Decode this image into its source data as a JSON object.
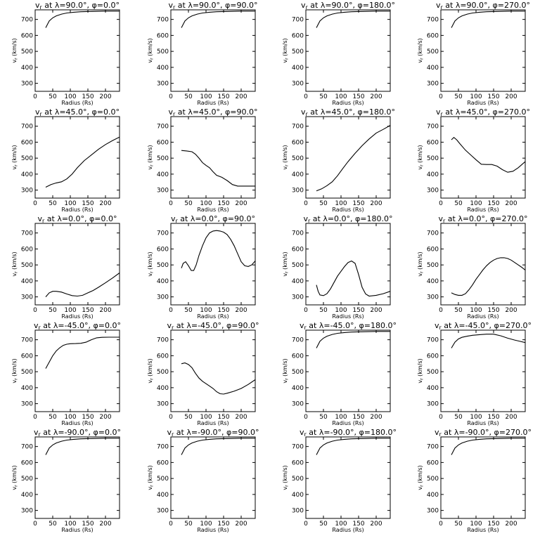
{
  "figure": {
    "xlabel": "Radius (Rs)",
    "ylabel": "vr (km/s)"
  },
  "chart_data": [
    {
      "type": "line",
      "title": "vr at λ=90.0°, φ=0.0°",
      "xlabel": "Radius (Rs)",
      "ylabel": "vr (km/s)",
      "xlim": [
        0,
        240
      ],
      "ylim": [
        250,
        760
      ],
      "xticks": [
        0,
        50,
        100,
        150,
        200
      ],
      "yticks": [
        300,
        400,
        500,
        600,
        700
      ],
      "x": [
        30,
        40,
        50,
        60,
        75,
        90,
        110,
        130,
        160,
        200,
        240
      ],
      "y": [
        648,
        690,
        710,
        722,
        733,
        740,
        745,
        748,
        750,
        752,
        752
      ]
    },
    {
      "type": "line",
      "title": "vr at λ=90.0°, φ=90.0°",
      "xlabel": "Radius (Rs)",
      "ylabel": "vr (km/s)",
      "xlim": [
        0,
        240
      ],
      "ylim": [
        250,
        760
      ],
      "xticks": [
        0,
        50,
        100,
        150,
        200
      ],
      "yticks": [
        300,
        400,
        500,
        600,
        700
      ],
      "x": [
        30,
        40,
        50,
        60,
        75,
        90,
        110,
        130,
        160,
        200,
        240
      ],
      "y": [
        648,
        690,
        710,
        722,
        733,
        740,
        745,
        748,
        750,
        752,
        752
      ]
    },
    {
      "type": "line",
      "title": "vr at λ=90.0°, φ=180.0°",
      "xlabel": "Radius (Rs)",
      "ylabel": "vr (km/s)",
      "xlim": [
        0,
        240
      ],
      "ylim": [
        250,
        760
      ],
      "xticks": [
        0,
        50,
        100,
        150,
        200
      ],
      "yticks": [
        300,
        400,
        500,
        600,
        700
      ],
      "x": [
        30,
        40,
        50,
        60,
        75,
        90,
        110,
        130,
        160,
        200,
        240
      ],
      "y": [
        648,
        690,
        710,
        722,
        733,
        740,
        745,
        748,
        750,
        752,
        752
      ]
    },
    {
      "type": "line",
      "title": "vr at λ=90.0°, φ=270.0°",
      "xlabel": "Radius (Rs)",
      "ylabel": "vr (km/s)",
      "xlim": [
        0,
        240
      ],
      "ylim": [
        250,
        760
      ],
      "xticks": [
        0,
        50,
        100,
        150,
        200
      ],
      "yticks": [
        300,
        400,
        500,
        600,
        700
      ],
      "x": [
        30,
        40,
        50,
        60,
        75,
        90,
        110,
        130,
        160,
        200,
        240
      ],
      "y": [
        648,
        690,
        710,
        722,
        733,
        740,
        745,
        748,
        750,
        752,
        752
      ]
    },
    {
      "type": "line",
      "title": "vr at λ=45.0°, φ=0.0°",
      "xlabel": "Radius (Rs)",
      "ylabel": "vr (km/s)",
      "xlim": [
        0,
        240
      ],
      "ylim": [
        250,
        760
      ],
      "xticks": [
        0,
        50,
        100,
        150,
        200
      ],
      "yticks": [
        300,
        400,
        500,
        600,
        700
      ],
      "x": [
        30,
        45,
        60,
        75,
        90,
        105,
        120,
        140,
        160,
        180,
        200,
        220,
        240
      ],
      "y": [
        318,
        335,
        345,
        352,
        370,
        400,
        440,
        485,
        520,
        555,
        585,
        610,
        632
      ]
    },
    {
      "type": "line",
      "title": "vr at λ=45.0°, φ=90.0°",
      "xlabel": "Radius (Rs)",
      "ylabel": "vr (km/s)",
      "xlim": [
        0,
        240
      ],
      "ylim": [
        250,
        760
      ],
      "xticks": [
        0,
        50,
        100,
        150,
        200
      ],
      "yticks": [
        300,
        400,
        500,
        600,
        700
      ],
      "x": [
        30,
        45,
        60,
        70,
        80,
        90,
        100,
        110,
        120,
        130,
        145,
        160,
        175,
        190,
        210,
        240
      ],
      "y": [
        548,
        545,
        540,
        525,
        500,
        472,
        455,
        440,
        415,
        393,
        380,
        360,
        335,
        325,
        325,
        325
      ]
    },
    {
      "type": "line",
      "title": "vr at λ=45.0°, φ=180.0°",
      "xlabel": "Radius (Rs)",
      "ylabel": "vr (km/s)",
      "xlim": [
        0,
        240
      ],
      "ylim": [
        250,
        760
      ],
      "xticks": [
        0,
        50,
        100,
        150,
        200
      ],
      "yticks": [
        300,
        400,
        500,
        600,
        700
      ],
      "x": [
        30,
        45,
        60,
        75,
        90,
        105,
        120,
        140,
        160,
        180,
        200,
        220,
        240
      ],
      "y": [
        295,
        308,
        328,
        352,
        390,
        435,
        478,
        530,
        578,
        620,
        657,
        680,
        705
      ]
    },
    {
      "type": "line",
      "title": "vr at λ=45.0°, φ=270.0°",
      "xlabel": "Radius (Rs)",
      "ylabel": "vr (km/s)",
      "xlim": [
        0,
        240
      ],
      "ylim": [
        250,
        760
      ],
      "xticks": [
        0,
        50,
        100,
        150,
        200
      ],
      "yticks": [
        300,
        400,
        500,
        600,
        700
      ],
      "x": [
        30,
        37,
        45,
        55,
        70,
        85,
        100,
        115,
        130,
        145,
        160,
        175,
        190,
        205,
        220,
        240
      ],
      "y": [
        615,
        630,
        615,
        588,
        550,
        520,
        490,
        462,
        460,
        460,
        450,
        428,
        412,
        418,
        440,
        478
      ]
    },
    {
      "type": "line",
      "title": "vr at λ=0.0°, φ=0.0°",
      "xlabel": "Radius (Rs)",
      "ylabel": "vr (km/s)",
      "xlim": [
        0,
        240
      ],
      "ylim": [
        250,
        760
      ],
      "xticks": [
        0,
        50,
        100,
        150,
        200
      ],
      "yticks": [
        300,
        400,
        500,
        600,
        700
      ],
      "x": [
        30,
        40,
        50,
        60,
        75,
        90,
        105,
        120,
        135,
        150,
        165,
        180,
        200,
        220,
        240
      ],
      "y": [
        300,
        325,
        335,
        335,
        330,
        318,
        308,
        305,
        310,
        325,
        340,
        360,
        388,
        418,
        450
      ]
    },
    {
      "type": "line",
      "title": "vr at λ=0.0°, φ=90.0°",
      "xlabel": "Radius (Rs)",
      "ylabel": "vr (km/s)",
      "xlim": [
        0,
        240
      ],
      "ylim": [
        250,
        760
      ],
      "xticks": [
        0,
        50,
        100,
        150,
        200
      ],
      "yticks": [
        300,
        400,
        500,
        600,
        700
      ],
      "x": [
        30,
        35,
        42,
        50,
        58,
        65,
        72,
        80,
        90,
        100,
        110,
        120,
        130,
        140,
        150,
        160,
        170,
        180,
        190,
        200,
        210,
        220,
        230,
        240
      ],
      "y": [
        480,
        510,
        520,
        495,
        465,
        465,
        500,
        560,
        620,
        670,
        700,
        712,
        715,
        712,
        705,
        690,
        660,
        620,
        570,
        520,
        495,
        490,
        500,
        525
      ]
    },
    {
      "type": "line",
      "title": "vr at λ=0.0°, φ=180.0°",
      "xlabel": "Radius (Rs)",
      "ylabel": "vr (km/s)",
      "xlim": [
        0,
        240
      ],
      "ylim": [
        250,
        760
      ],
      "xticks": [
        0,
        50,
        100,
        150,
        200
      ],
      "yticks": [
        300,
        400,
        500,
        600,
        700
      ],
      "x": [
        30,
        35,
        40,
        50,
        60,
        70,
        80,
        90,
        100,
        110,
        120,
        130,
        140,
        150,
        160,
        170,
        180,
        200,
        220,
        240
      ],
      "y": [
        375,
        335,
        312,
        308,
        320,
        350,
        390,
        430,
        460,
        490,
        515,
        525,
        510,
        440,
        360,
        318,
        305,
        310,
        320,
        335
      ]
    },
    {
      "type": "line",
      "title": "vr at λ=0.0°, φ=270.0°",
      "xlabel": "Radius (Rs)",
      "ylabel": "vr (km/s)",
      "xlim": [
        0,
        240
      ],
      "ylim": [
        250,
        760
      ],
      "xticks": [
        0,
        50,
        100,
        150,
        200
      ],
      "yticks": [
        300,
        400,
        500,
        600,
        700
      ],
      "x": [
        30,
        40,
        50,
        60,
        70,
        80,
        90,
        100,
        110,
        120,
        130,
        140,
        150,
        160,
        170,
        180,
        190,
        200,
        210,
        220,
        230,
        240
      ],
      "y": [
        325,
        315,
        310,
        310,
        320,
        345,
        375,
        410,
        440,
        470,
        495,
        515,
        530,
        540,
        545,
        545,
        540,
        530,
        515,
        500,
        485,
        468
      ]
    },
    {
      "type": "line",
      "title": "vr at λ=-45.0°, φ=0.0°",
      "xlabel": "Radius (Rs)",
      "ylabel": "vr (km/s)",
      "xlim": [
        0,
        240
      ],
      "ylim": [
        250,
        760
      ],
      "xticks": [
        0,
        50,
        100,
        150,
        200
      ],
      "yticks": [
        300,
        400,
        500,
        600,
        700
      ],
      "x": [
        30,
        40,
        50,
        60,
        70,
        80,
        90,
        100,
        115,
        130,
        145,
        160,
        175,
        190,
        210,
        240
      ],
      "y": [
        520,
        560,
        600,
        630,
        650,
        665,
        672,
        675,
        676,
        678,
        685,
        700,
        712,
        715,
        716,
        716
      ]
    },
    {
      "type": "line",
      "title": "vr at λ=-45.0°, φ=90.0°",
      "xlabel": "Radius (Rs)",
      "ylabel": "vr (km/s)",
      "xlim": [
        0,
        240
      ],
      "ylim": [
        250,
        760
      ],
      "xticks": [
        0,
        50,
        100,
        150,
        200
      ],
      "yticks": [
        300,
        400,
        500,
        600,
        700
      ],
      "x": [
        30,
        40,
        50,
        60,
        70,
        80,
        90,
        100,
        110,
        120,
        130,
        140,
        150,
        160,
        180,
        200,
        220,
        240
      ],
      "y": [
        550,
        555,
        545,
        525,
        490,
        460,
        440,
        425,
        410,
        395,
        375,
        362,
        360,
        365,
        378,
        395,
        420,
        450
      ]
    },
    {
      "type": "line",
      "title": "vr at λ=-45.0°, φ=180.0°",
      "xlabel": "Radius (Rs)",
      "ylabel": "vr (km/s)",
      "xlim": [
        0,
        240
      ],
      "ylim": [
        250,
        760
      ],
      "xticks": [
        0,
        50,
        100,
        150,
        200
      ],
      "yticks": [
        300,
        400,
        500,
        600,
        700
      ],
      "x": [
        30,
        40,
        50,
        60,
        75,
        90,
        110,
        130,
        160,
        200,
        240
      ],
      "y": [
        648,
        690,
        710,
        722,
        733,
        740,
        745,
        748,
        750,
        752,
        752
      ]
    },
    {
      "type": "line",
      "title": "vr at λ=-45.0°, φ=270.0°",
      "xlabel": "Radius (Rs)",
      "ylabel": "vr (km/s)",
      "xlim": [
        0,
        240
      ],
      "ylim": [
        250,
        760
      ],
      "xticks": [
        0,
        50,
        100,
        150,
        200
      ],
      "yticks": [
        300,
        400,
        500,
        600,
        700
      ],
      "x": [
        30,
        40,
        50,
        60,
        75,
        90,
        110,
        130,
        150,
        170,
        190,
        210,
        225,
        240
      ],
      "y": [
        648,
        685,
        705,
        715,
        722,
        728,
        732,
        735,
        735,
        725,
        710,
        698,
        690,
        682
      ]
    },
    {
      "type": "line",
      "title": "vr at λ=-90.0°, φ=0.0°",
      "xlabel": "Radius (Rs)",
      "ylabel": "vr (km/s)",
      "xlim": [
        0,
        240
      ],
      "ylim": [
        250,
        760
      ],
      "xticks": [
        0,
        50,
        100,
        150,
        200
      ],
      "yticks": [
        300,
        400,
        500,
        600,
        700
      ],
      "x": [
        30,
        40,
        50,
        60,
        75,
        90,
        110,
        130,
        160,
        200,
        240
      ],
      "y": [
        648,
        690,
        710,
        722,
        733,
        740,
        745,
        748,
        750,
        752,
        752
      ]
    },
    {
      "type": "line",
      "title": "vr at λ=-90.0°, φ=90.0°",
      "xlabel": "Radius (Rs)",
      "ylabel": "vr (km/s)",
      "xlim": [
        0,
        240
      ],
      "ylim": [
        250,
        760
      ],
      "xticks": [
        0,
        50,
        100,
        150,
        200
      ],
      "yticks": [
        300,
        400,
        500,
        600,
        700
      ],
      "x": [
        30,
        40,
        50,
        60,
        75,
        90,
        110,
        130,
        160,
        200,
        240
      ],
      "y": [
        648,
        690,
        710,
        722,
        733,
        740,
        745,
        748,
        750,
        752,
        752
      ]
    },
    {
      "type": "line",
      "title": "vr at λ=-90.0°, φ=180.0°",
      "xlabel": "Radius (Rs)",
      "ylabel": "vr (km/s)",
      "xlim": [
        0,
        240
      ],
      "ylim": [
        250,
        760
      ],
      "xticks": [
        0,
        50,
        100,
        150,
        200
      ],
      "yticks": [
        300,
        400,
        500,
        600,
        700
      ],
      "x": [
        30,
        40,
        50,
        60,
        75,
        90,
        110,
        130,
        160,
        200,
        240
      ],
      "y": [
        648,
        690,
        710,
        722,
        733,
        740,
        745,
        748,
        750,
        752,
        752
      ]
    },
    {
      "type": "line",
      "title": "vr at λ=-90.0°, φ=270.0°",
      "xlabel": "Radius (Rs)",
      "ylabel": "vr (km/s)",
      "xlim": [
        0,
        240
      ],
      "ylim": [
        250,
        760
      ],
      "xticks": [
        0,
        50,
        100,
        150,
        200
      ],
      "yticks": [
        300,
        400,
        500,
        600,
        700
      ],
      "x": [
        30,
        40,
        50,
        60,
        75,
        90,
        110,
        130,
        160,
        200,
        240
      ],
      "y": [
        648,
        690,
        710,
        722,
        733,
        740,
        745,
        748,
        750,
        752,
        752
      ]
    }
  ]
}
